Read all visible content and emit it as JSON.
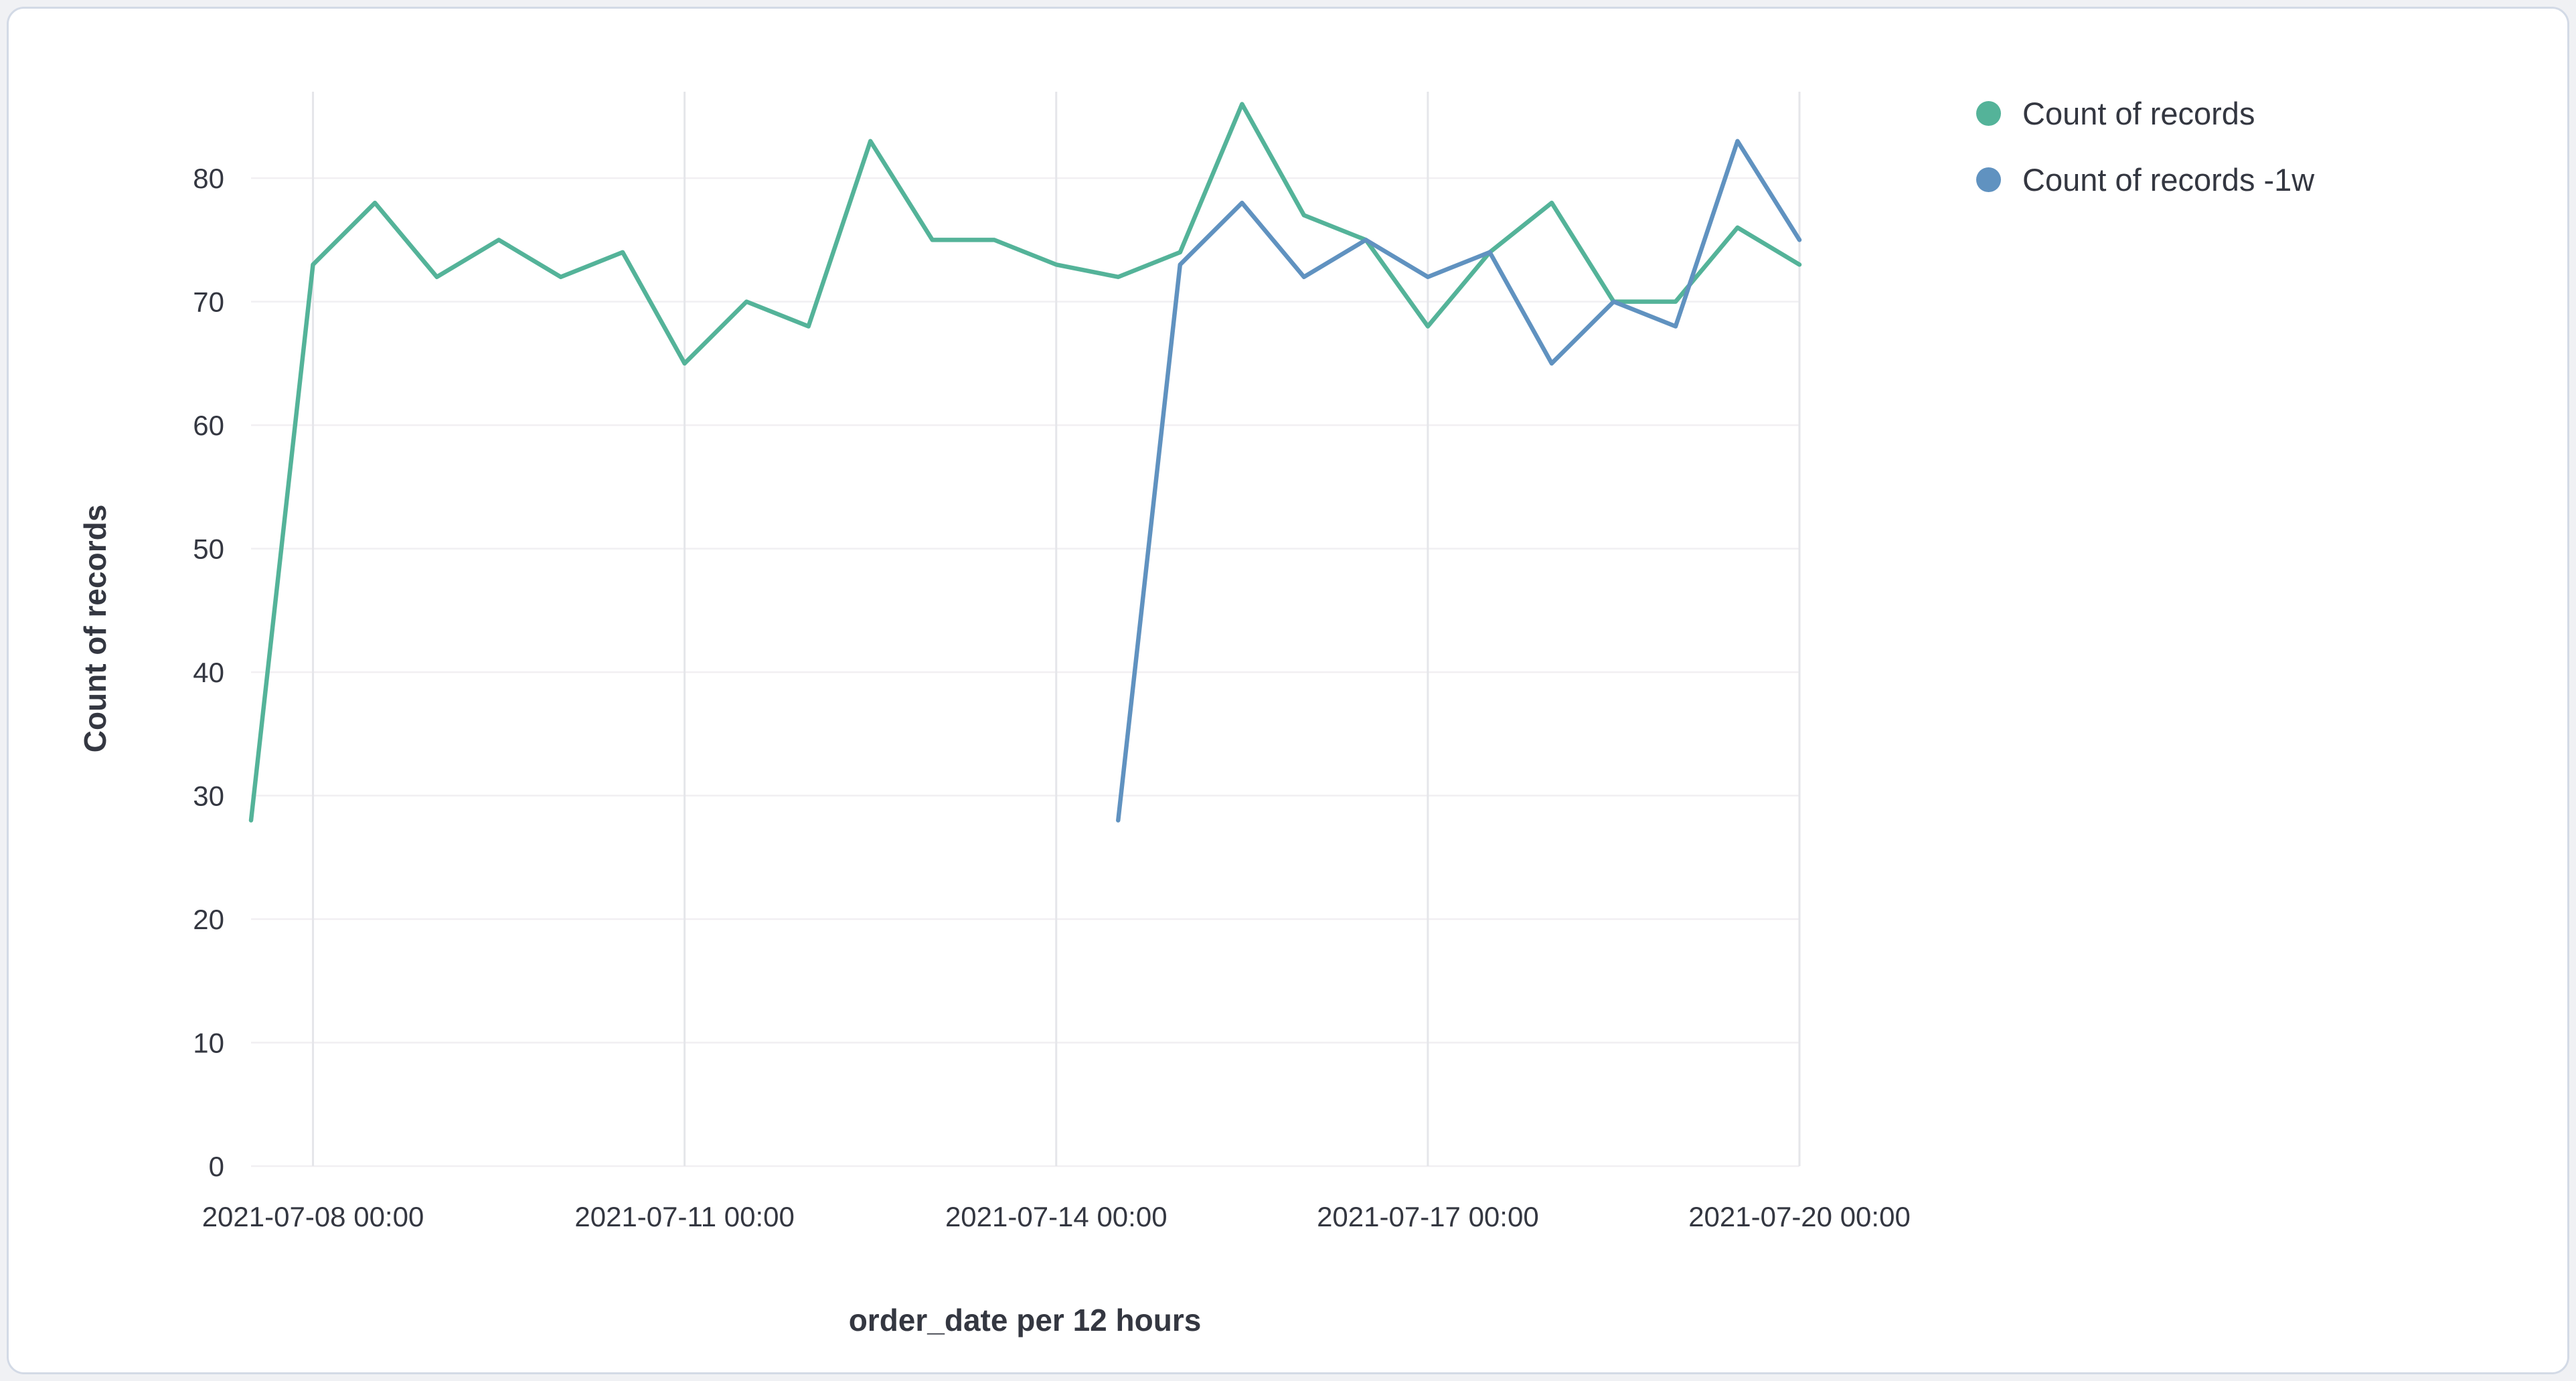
{
  "page": {
    "background": "#f0f1f4"
  },
  "card": {
    "background": "#ffffff",
    "border_color": "#d3dae6"
  },
  "chart_data": {
    "type": "line",
    "title": "",
    "xlabel": "order_date per 12 hours",
    "ylabel": "Count of records",
    "legend_position": "right",
    "grid": true,
    "ylim": [
      0,
      87
    ],
    "y_ticks": [
      0,
      10,
      20,
      30,
      40,
      50,
      60,
      70,
      80
    ],
    "x": [
      "2021-07-07 12:00",
      "2021-07-08 00:00",
      "2021-07-08 12:00",
      "2021-07-09 00:00",
      "2021-07-09 12:00",
      "2021-07-10 00:00",
      "2021-07-10 12:00",
      "2021-07-11 00:00",
      "2021-07-11 12:00",
      "2021-07-12 00:00",
      "2021-07-12 12:00",
      "2021-07-13 00:00",
      "2021-07-13 12:00",
      "2021-07-14 00:00",
      "2021-07-14 12:00",
      "2021-07-15 00:00",
      "2021-07-15 12:00",
      "2021-07-16 00:00",
      "2021-07-16 12:00",
      "2021-07-17 00:00",
      "2021-07-17 12:00",
      "2021-07-18 00:00",
      "2021-07-18 12:00",
      "2021-07-19 00:00",
      "2021-07-19 12:00",
      "2021-07-20 00:00"
    ],
    "x_ticks": [
      {
        "index": 1,
        "label": "2021-07-08 00:00"
      },
      {
        "index": 7,
        "label": "2021-07-11 00:00"
      },
      {
        "index": 13,
        "label": "2021-07-14 00:00"
      },
      {
        "index": 19,
        "label": "2021-07-17 00:00"
      },
      {
        "index": 25,
        "label": "2021-07-20 00:00"
      }
    ],
    "series": [
      {
        "name": "Count of records",
        "color": "#54b399",
        "values": [
          28,
          73,
          78,
          72,
          75,
          72,
          74,
          65,
          70,
          68,
          83,
          75,
          75,
          73,
          72,
          74,
          86,
          77,
          75,
          68,
          74,
          78,
          70,
          70,
          76,
          73
        ]
      },
      {
        "name": "Count of records -1w",
        "color": "#6092c0",
        "values": [
          null,
          null,
          null,
          null,
          null,
          null,
          null,
          null,
          null,
          null,
          null,
          null,
          null,
          null,
          28,
          73,
          78,
          72,
          75,
          72,
          74,
          65,
          70,
          68,
          83,
          75
        ]
      }
    ]
  }
}
